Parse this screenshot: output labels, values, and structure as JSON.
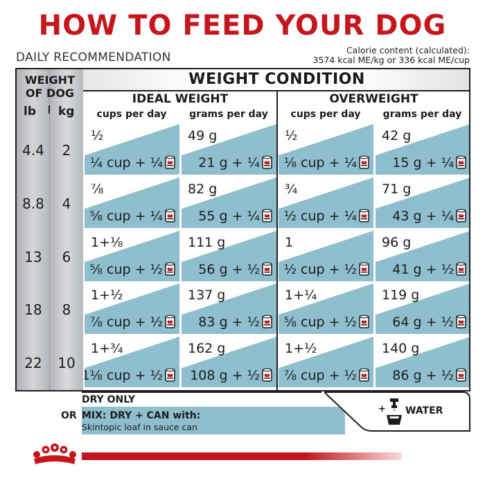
{
  "title": "HOW TO FEED YOUR DOG",
  "daily_recommendation": "DAILY RECOMMENDATION",
  "calorie": {
    "line1": "Calorie content (calculated):",
    "line2": "3574 kcal ME/kg or 336 kcal ME/cup"
  },
  "table": {
    "weight_of_dog_line1": "WEIGHT",
    "weight_of_dog_line2": "OF DOG",
    "lb_label": "lb",
    "kg_label": "kg",
    "weight_condition": "WEIGHT CONDITION",
    "ideal_weight": "IDEAL WEIGHT",
    "overweight": "OVERWEIGHT",
    "cups_per_day": "cups per day",
    "grams_per_day": "grams per day",
    "rows": [
      {
        "lb": "4.4",
        "kg": "2",
        "cells": [
          {
            "top": "½",
            "bottom": "¼ cup + ¼"
          },
          {
            "top": "49 g",
            "bottom": "21 g + ¼"
          },
          {
            "top": "½",
            "bottom": "⅛ cup + ¼"
          },
          {
            "top": "42 g",
            "bottom": "15 g + ¼"
          }
        ]
      },
      {
        "lb": "8.8",
        "kg": "4",
        "cells": [
          {
            "top": "⅞",
            "bottom": "⅝ cup + ¼"
          },
          {
            "top": "82 g",
            "bottom": "55 g + ¼"
          },
          {
            "top": "¾",
            "bottom": "½ cup + ¼"
          },
          {
            "top": "71 g",
            "bottom": "43 g + ¼"
          }
        ]
      },
      {
        "lb": "13",
        "kg": "6",
        "cells": [
          {
            "top": "1+⅛",
            "bottom": "⅝ cup + ½"
          },
          {
            "top": "111 g",
            "bottom": "56 g + ½"
          },
          {
            "top": "1",
            "bottom": "½ cup + ½"
          },
          {
            "top": "96 g",
            "bottom": "41 g + ½"
          }
        ]
      },
      {
        "lb": "18",
        "kg": "8",
        "cells": [
          {
            "top": "1+½",
            "bottom": "⅞ cup + ½"
          },
          {
            "top": "137 g",
            "bottom": "83 g + ½"
          },
          {
            "top": "1+¼",
            "bottom": "⅝ cup + ½"
          },
          {
            "top": "119 g",
            "bottom": "64 g + ½"
          }
        ]
      },
      {
        "lb": "22",
        "kg": "10",
        "cells": [
          {
            "top": "1+¾",
            "bottom": "1⅛ cup + ½"
          },
          {
            "top": "162 g",
            "bottom": "108 g + ½"
          },
          {
            "top": "1+½",
            "bottom": "⅞ cup + ½"
          },
          {
            "top": "140 g",
            "bottom": "86 g + ½"
          }
        ]
      }
    ]
  },
  "legend": {
    "dry_only": "DRY ONLY",
    "or": "OR",
    "mix": "MIX: DRY + CAN with:",
    "can_product": "Skintopic loaf in sauce can",
    "plus": "+",
    "water": "WATER"
  },
  "colors": {
    "title_red": "#c4161c",
    "blue": "#8fbfcf",
    "gray": "#c4c6c8"
  },
  "icons": [
    "can-icon",
    "water-tap-bowl-icon",
    "royal-canin-crown-logo"
  ]
}
